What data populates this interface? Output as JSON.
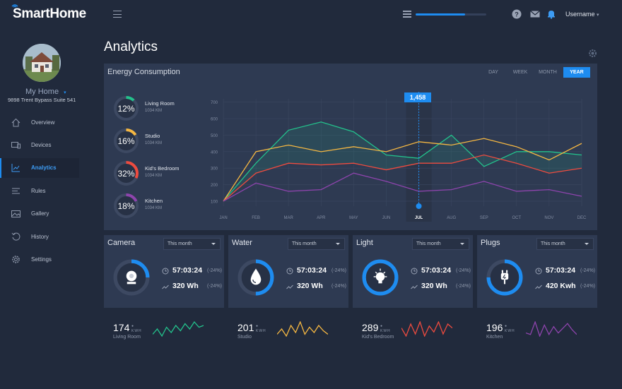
{
  "header": {
    "logo_prefix": "S",
    "logo_rest": "martHome",
    "progress": 0.7,
    "username": "Username",
    "icons": [
      "menu-icon",
      "list-icon",
      "help-icon",
      "mail-icon",
      "bell-icon"
    ]
  },
  "sidebar": {
    "home_name": "My Home",
    "address": "9898 Trent Bypass Suite 541",
    "items": [
      {
        "label": "Overview",
        "icon": "home-icon"
      },
      {
        "label": "Devices",
        "icon": "devices-icon"
      },
      {
        "label": "Analytics",
        "icon": "analytics-icon",
        "active": true
      },
      {
        "label": "Rules",
        "icon": "rules-icon"
      },
      {
        "label": "Gallery",
        "icon": "gallery-icon"
      },
      {
        "label": "History",
        "icon": "history-icon"
      },
      {
        "label": "Settings",
        "icon": "settings-icon"
      }
    ]
  },
  "page": {
    "title": "Analytics"
  },
  "energy": {
    "title": "Energy Consumption",
    "ranges": [
      "DAY",
      "WEEK",
      "MONTH",
      "YEAR"
    ],
    "active_range": "YEAR",
    "rooms": [
      {
        "name": "Living Room",
        "sub": "1034 KM",
        "pct": "12%",
        "value": 12,
        "color": "#23c28c"
      },
      {
        "name": "Studio",
        "sub": "1034 KM",
        "pct": "16%",
        "value": 16,
        "color": "#f5b742"
      },
      {
        "name": "Kid's Bedroom",
        "sub": "1034 KM",
        "pct": "32%",
        "value": 32,
        "color": "#ee4b3f"
      },
      {
        "name": "Kitchen",
        "sub": "1034 KM",
        "pct": "18%",
        "value": 18,
        "color": "#8e44ad"
      }
    ],
    "tooltip": "1,458"
  },
  "chart_data": {
    "type": "line",
    "categories": [
      "JAN",
      "FEB",
      "MAR",
      "APR",
      "MAY",
      "JUN",
      "JUL",
      "AUG",
      "SEP",
      "OCT",
      "NOV",
      "DEC"
    ],
    "y_ticks": [
      100,
      200,
      300,
      400,
      500,
      600,
      700
    ],
    "ylim": [
      70,
      720
    ],
    "highlight": "JUL",
    "series": [
      {
        "color": "#23c28c",
        "values": [
          100,
          330,
          530,
          580,
          520,
          380,
          360,
          500,
          310,
          400,
          400,
          380
        ]
      },
      {
        "color": "#f5b742",
        "values": [
          100,
          400,
          440,
          400,
          430,
          400,
          460,
          440,
          480,
          430,
          350,
          450
        ]
      },
      {
        "color": "#ee4b3f",
        "values": [
          100,
          270,
          330,
          320,
          330,
          290,
          330,
          330,
          380,
          330,
          270,
          300
        ]
      },
      {
        "color": "#8e44ad",
        "values": [
          100,
          210,
          160,
          170,
          270,
          220,
          160,
          170,
          220,
          160,
          170,
          130
        ]
      }
    ]
  },
  "devices": [
    {
      "title": "Camera",
      "dropdown": "This month",
      "time": "57:03:24",
      "time_delta": "(-24%)",
      "energy": "320 Wh",
      "energy_delta": "(-24%)",
      "progress": 0.25,
      "icon": "camera-icon"
    },
    {
      "title": "Water",
      "dropdown": "This month",
      "time": "57:03:24",
      "time_delta": "(-24%)",
      "energy": "320 Wh",
      "energy_delta": "(-24%)",
      "progress": 0.5,
      "icon": "water-drop-icon"
    },
    {
      "title": "Light",
      "dropdown": "This month",
      "time": "57:03:24",
      "time_delta": "(-24%)",
      "energy": "320 Wh",
      "energy_delta": "(-24%)",
      "progress": 1.0,
      "icon": "lightbulb-icon"
    },
    {
      "title": "Plugs",
      "dropdown": "This month",
      "time": "57:03:24",
      "time_delta": "(-24%)",
      "energy": "420 Kwh",
      "energy_delta": "(-24%)",
      "progress": 0.75,
      "icon": "plug-icon"
    }
  ],
  "summaries": [
    {
      "value": "174",
      "unit": "KWH",
      "label": "Living Room",
      "color": "#23c28c",
      "spark": [
        3,
        6,
        2,
        7,
        4,
        8,
        5,
        9,
        6,
        10,
        7,
        8
      ]
    },
    {
      "value": "201",
      "unit": "KWH",
      "label": "Studio",
      "color": "#f5b742",
      "spark": [
        4,
        7,
        3,
        9,
        5,
        11,
        4,
        8,
        5,
        9,
        6,
        4
      ]
    },
    {
      "value": "289",
      "unit": "KWH",
      "label": "Kid's Bedroom",
      "color": "#ee4b3f",
      "spark": [
        6,
        2,
        8,
        3,
        9,
        2,
        7,
        4,
        9,
        3,
        8,
        6
      ]
    },
    {
      "value": "196",
      "unit": "KWH",
      "label": "Kitchen",
      "color": "#8e44ad",
      "spark": [
        4,
        3,
        11,
        2,
        9,
        3,
        8,
        4,
        7,
        10,
        6,
        3
      ]
    }
  ]
}
